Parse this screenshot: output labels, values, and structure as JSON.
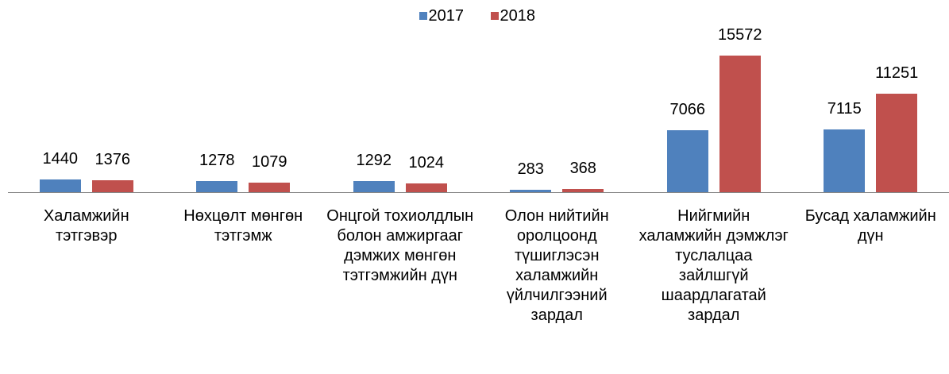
{
  "chart_data": {
    "type": "bar",
    "categories": [
      "Халамжийн тэтгэвэр",
      "Нөхцөлт мөнгөн тэтгэмж",
      "Онцгой тохиолдлын болон амжиргааг дэмжих мөнгөн тэтгэмжийн дүн",
      "Олон нийтийн оролцоонд түшиглэсэн халамжийн үйлчилгээний зардал",
      "Нийгмийн халамжийн дэмжлэг туслалцаа зайлшгүй шаардлагатай зардал",
      "Бусад халамжийн дүн"
    ],
    "series": [
      {
        "name": "2017",
        "color": "#4f81bd",
        "values": [
          1440,
          1278,
          1292,
          283,
          7066,
          7115
        ]
      },
      {
        "name": "2018",
        "color": "#c0504d",
        "values": [
          1376,
          1079,
          1024,
          368,
          15572,
          11251
        ]
      }
    ],
    "legend": "top"
  }
}
